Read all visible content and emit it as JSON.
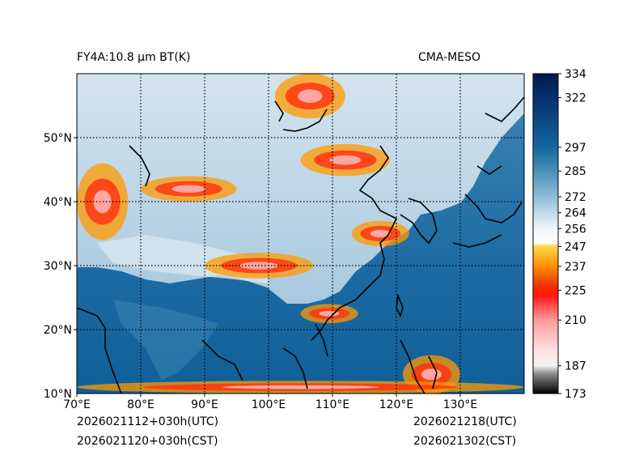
{
  "header": {
    "title_left": "FY4A:10.8 µm BT(K)",
    "title_right": "CMA-MESO"
  },
  "footer": {
    "init_utc": "2026021112+030h(UTC)",
    "init_cst": "2026021120+030h(CST)",
    "valid_utc": "2026021218(UTC)",
    "valid_cst": "2026021302(CST)"
  },
  "map": {
    "lon_range": [
      70,
      140
    ],
    "lat_range": [
      10,
      60
    ],
    "lon_ticks": [
      70,
      80,
      90,
      100,
      110,
      120,
      130
    ],
    "lon_labels": [
      "70°E",
      "80°E",
      "90°E",
      "100°E",
      "110°E",
      "120°E",
      "130°E"
    ],
    "lat_ticks": [
      20,
      30,
      40,
      50
    ],
    "lat_labels": [
      "20°N",
      "30°N",
      "40°N",
      "50°N"
    ],
    "bottom_lat_label": "10°N",
    "grid_lons": [
      80,
      90,
      100,
      110,
      120,
      130
    ],
    "grid_lats": [
      20,
      30,
      40,
      50
    ],
    "cloud_bands": [
      {
        "name": "western-cold-cloud",
        "lon": [
          70,
          78
        ],
        "lat": [
          34,
          46
        ]
      },
      {
        "name": "central-asia-band",
        "lon": [
          80,
          95
        ],
        "lat": [
          40,
          44
        ]
      },
      {
        "name": "northeast-cold-cloud",
        "lon": [
          101,
          112
        ],
        "lat": [
          53,
          60
        ]
      },
      {
        "name": "mongolia-streaks",
        "lon": [
          105,
          119
        ],
        "lat": [
          44,
          49
        ]
      },
      {
        "name": "tibet-band",
        "lon": [
          90,
          107
        ],
        "lat": [
          28,
          32
        ]
      },
      {
        "name": "korea-band",
        "lon": [
          113,
          122
        ],
        "lat": [
          33,
          37
        ]
      },
      {
        "name": "south-china-streaks",
        "lon": [
          105,
          114
        ],
        "lat": [
          21,
          24
        ]
      },
      {
        "name": "philippine-cloud",
        "lon": [
          121,
          130
        ],
        "lat": [
          10,
          16
        ]
      },
      {
        "name": "equatorial-edge",
        "lon": [
          70,
          140
        ],
        "lat": [
          10,
          12
        ]
      }
    ]
  },
  "colorbar": {
    "min": 173,
    "max": 334,
    "tick_values": [
      334,
      322,
      297,
      285,
      272,
      264,
      256,
      247,
      237,
      225,
      210,
      187,
      173
    ],
    "tick_labels": [
      "334",
      "322",
      "297",
      "285",
      "272",
      "264",
      "256",
      "247",
      "237",
      "225",
      "210",
      "187",
      "173"
    ],
    "stops": [
      {
        "v": 173,
        "c": "#000000"
      },
      {
        "v": 183,
        "c": "#8c8c8c"
      },
      {
        "v": 187,
        "c": "#f2f2f2"
      },
      {
        "v": 195,
        "c": "#ffe0e0"
      },
      {
        "v": 210,
        "c": "#ff9a9a"
      },
      {
        "v": 222,
        "c": "#ff1a1a"
      },
      {
        "v": 225,
        "c": "#ff2000"
      },
      {
        "v": 228,
        "c": "#e83c00"
      },
      {
        "v": 237,
        "c": "#ff8c00"
      },
      {
        "v": 247,
        "c": "#ffd84a"
      },
      {
        "v": 249,
        "c": "#ffffff"
      },
      {
        "v": 256,
        "c": "#f0f6fa"
      },
      {
        "v": 264,
        "c": "#c0d8e8"
      },
      {
        "v": 272,
        "c": "#8fbcd6"
      },
      {
        "v": 285,
        "c": "#4a90b8"
      },
      {
        "v": 297,
        "c": "#1666a0"
      },
      {
        "v": 310,
        "c": "#0b4a86"
      },
      {
        "v": 322,
        "c": "#062f6e"
      },
      {
        "v": 334,
        "c": "#021a4d"
      }
    ]
  }
}
